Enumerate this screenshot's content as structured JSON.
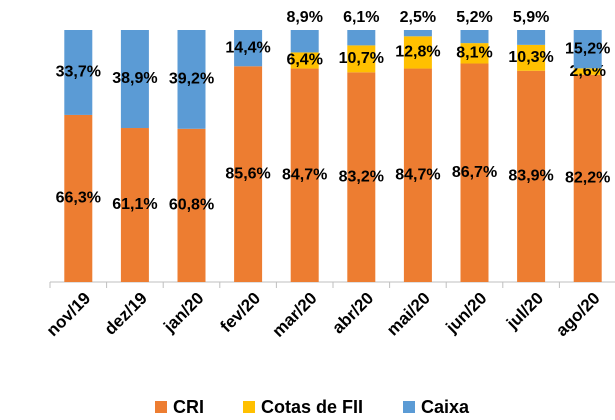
{
  "chart_data": {
    "type": "stacked_bar",
    "categories": [
      "nov/19",
      "dez/19",
      "jan/20",
      "fev/20",
      "mar/20",
      "abr/20",
      "mai/20",
      "jun/20",
      "jul/20",
      "ago/20"
    ],
    "series": [
      {
        "name": "CRI",
        "color": "#ed7d31",
        "values": [
          66.3,
          61.1,
          60.8,
          85.6,
          84.7,
          83.2,
          84.7,
          86.7,
          83.9,
          82.2
        ],
        "value_labels": [
          "66,3%",
          "61,1%",
          "60,8%",
          "85,6%",
          "84,7%",
          "83,2%",
          "84,7%",
          "86,7%",
          "83,9%",
          "82,2%"
        ]
      },
      {
        "name": "Cotas de FII",
        "color": "#ffc000",
        "values": [
          null,
          null,
          null,
          null,
          6.4,
          10.7,
          12.8,
          8.1,
          10.3,
          2.6
        ],
        "value_labels": [
          null,
          null,
          null,
          null,
          "6,4%",
          "10,7%",
          "12,8%",
          "8,1%",
          "10,3%",
          "2,6%"
        ]
      },
      {
        "name": "Caixa",
        "color": "#5b9bd5",
        "values": [
          33.7,
          38.9,
          39.2,
          14.4,
          8.9,
          6.1,
          2.5,
          5.2,
          5.9,
          15.2
        ],
        "value_labels": [
          "33,7%",
          "38,9%",
          "39,2%",
          "14,4%",
          "8,9%",
          "6,1%",
          "2,5%",
          "5,2%",
          "5,9%",
          "15,2%"
        ]
      }
    ],
    "legend": "bottom"
  }
}
